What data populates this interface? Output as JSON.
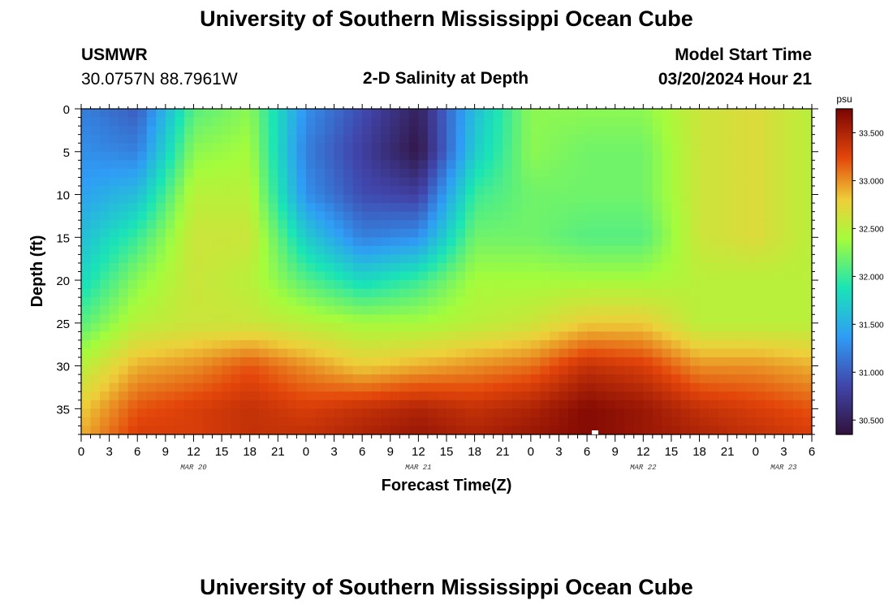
{
  "header": {
    "title": "University of Southern Mississippi Ocean Cube",
    "station_id": "USMWR",
    "station_coords": "30.0757N  88.7961W",
    "plot_title": "2-D Salinity at Depth",
    "start_label": "Model Start Time",
    "start_value": "03/20/2024 Hour 21"
  },
  "footer": {
    "title": "University of Southern Mississippi Ocean Cube"
  },
  "chart_data": {
    "type": "heatmap",
    "title": "2-D Salinity at Depth",
    "xlabel": "Forecast Time(Z)",
    "ylabel": "Depth (ft)",
    "x_tick_labels": [
      "0",
      "3",
      "6",
      "9",
      "12",
      "15",
      "18",
      "21",
      "0",
      "3",
      "6",
      "9",
      "12",
      "15",
      "18",
      "21",
      "0",
      "3",
      "6",
      "9",
      "12",
      "15",
      "18",
      "21",
      "0",
      "3",
      "6"
    ],
    "date_labels": [
      {
        "label": "MAR 20",
        "hour": 12
      },
      {
        "label": "MAR 21",
        "hour": 36
      },
      {
        "label": "MAR 22",
        "hour": 60
      },
      {
        "label": "MAR 23",
        "hour": 75
      }
    ],
    "xlim_hours": [
      0,
      78
    ],
    "y_ticks": [
      0,
      5,
      10,
      15,
      20,
      25,
      30,
      35
    ],
    "ylim": [
      0,
      38
    ],
    "y_inverted": true,
    "colorbar": {
      "unit": "psu",
      "ticks": [
        "33.500",
        "33.000",
        "32.500",
        "32.000",
        "31.500",
        "31.000",
        "30.500"
      ],
      "range": [
        30.35,
        33.75
      ]
    },
    "x_hours": [
      0,
      6,
      12,
      18,
      24,
      30,
      36,
      42,
      48,
      54,
      60,
      66,
      72,
      78
    ],
    "depths_ft": [
      0,
      5,
      10,
      15,
      20,
      25,
      30,
      35,
      38
    ],
    "values": [
      [
        31.2,
        31.0,
        32.1,
        32.3,
        31.3,
        30.9,
        30.5,
        31.6,
        32.3,
        32.3,
        32.3,
        32.6,
        32.7,
        32.5
      ],
      [
        31.3,
        31.2,
        32.3,
        32.4,
        31.2,
        30.8,
        30.4,
        31.7,
        32.3,
        32.2,
        32.2,
        32.6,
        32.7,
        32.5
      ],
      [
        31.4,
        31.6,
        32.5,
        32.5,
        31.3,
        30.9,
        30.8,
        32.0,
        32.2,
        32.2,
        32.2,
        32.6,
        32.7,
        32.5
      ],
      [
        31.6,
        32.0,
        32.6,
        32.6,
        31.7,
        31.2,
        31.3,
        32.2,
        32.2,
        32.1,
        32.1,
        32.6,
        32.7,
        32.5
      ],
      [
        31.8,
        32.3,
        32.6,
        32.5,
        32.1,
        31.8,
        32.0,
        32.4,
        32.4,
        32.4,
        32.4,
        32.5,
        32.5,
        32.5
      ],
      [
        32.1,
        32.5,
        32.6,
        32.6,
        32.5,
        32.4,
        32.4,
        32.5,
        32.6,
        32.8,
        32.8,
        32.5,
        32.5,
        32.5
      ],
      [
        32.5,
        32.9,
        33.0,
        33.2,
        33.0,
        32.8,
        32.9,
        33.0,
        33.1,
        33.4,
        33.3,
        33.0,
        33.0,
        32.9
      ],
      [
        32.8,
        33.2,
        33.3,
        33.4,
        33.3,
        33.4,
        33.5,
        33.4,
        33.5,
        33.7,
        33.6,
        33.4,
        33.3,
        33.2
      ],
      [
        32.9,
        33.3,
        33.3,
        33.4,
        33.4,
        33.5,
        33.6,
        33.5,
        33.6,
        33.7,
        33.6,
        33.5,
        33.4,
        33.3
      ]
    ]
  }
}
